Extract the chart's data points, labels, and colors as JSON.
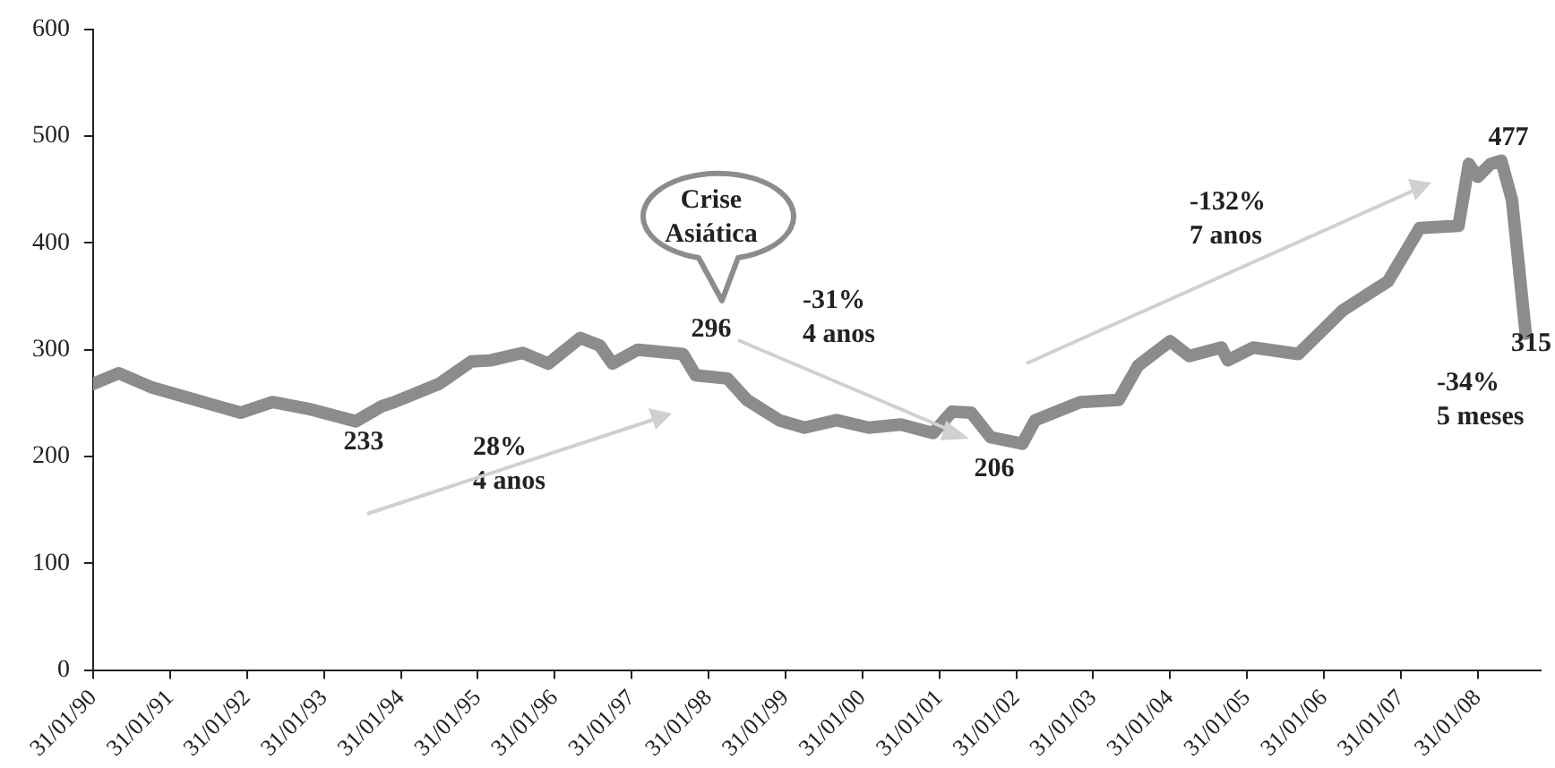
{
  "chart_data": {
    "type": "line",
    "x": [
      "1990-01-31",
      "1990-06",
      "1990-11",
      "1992-01",
      "1992-06",
      "1992-12",
      "1993-07",
      "1993-11",
      "1994-01",
      "1994-08",
      "1995-01",
      "1995-04",
      "1995-09",
      "1996-01",
      "1996-06",
      "1996-09",
      "1996-11",
      "1997-03",
      "1997-10",
      "1997-12",
      "1998-05",
      "1998-08",
      "1999-01",
      "1999-05",
      "1999-10",
      "2000-03",
      "2000-08",
      "2001-01",
      "2001-04",
      "2001-07",
      "2001-10",
      "2002-03",
      "2002-05",
      "2002-12",
      "2003-06",
      "2003-09",
      "2004-02",
      "2004-05",
      "2004-10",
      "2004-11",
      "2005-03",
      "2005-10",
      "2006-05",
      "2006-12",
      "2007-05",
      "2007-11",
      "2007-12-20",
      "2008-01-31",
      "2008-04-01",
      "2008-05-22",
      "2008-07-12",
      "2008-09-15"
    ],
    "series": [
      {
        "color": "#8c8c8c",
        "values": [
          268,
          278,
          265,
          241,
          251,
          244,
          233,
          247,
          251,
          268,
          289,
          290,
          297,
          287,
          311,
          304,
          287,
          300,
          296,
          276,
          273,
          253,
          234,
          227,
          234,
          227,
          230,
          222,
          242,
          241,
          218,
          212,
          234,
          251,
          253,
          285,
          308,
          294,
          302,
          290,
          302,
          296,
          337,
          364,
          414,
          416,
          474,
          462,
          474,
          477,
          440,
          315
        ]
      }
    ],
    "xlim": [
      "1990-01-31",
      "2008-11-25"
    ],
    "xticks": [
      {
        "value": "1990-01-31",
        "label": "31/01/90"
      },
      {
        "value": "1991-01-31",
        "label": "31/01/91"
      },
      {
        "value": "1992-01-31",
        "label": "31/01/92"
      },
      {
        "value": "1993-01-31",
        "label": "31/01/93"
      },
      {
        "value": "1994-01-31",
        "label": "31/01/94"
      },
      {
        "value": "1995-01-31",
        "label": "31/01/95"
      },
      {
        "value": "1996-01-31",
        "label": "31/01/96"
      },
      {
        "value": "1997-01-31",
        "label": "31/01/97"
      },
      {
        "value": "1998-01-31",
        "label": "31/01/98"
      },
      {
        "value": "1999-01-31",
        "label": "31/01/99"
      },
      {
        "value": "2000-01-31",
        "label": "31/01/00"
      },
      {
        "value": "2001-01-31",
        "label": "31/01/01"
      },
      {
        "value": "2002-01-31",
        "label": "31/01/02"
      },
      {
        "value": "2003-01-31",
        "label": "31/01/03"
      },
      {
        "value": "2004-01-31",
        "label": "31/01/04"
      },
      {
        "value": "2005-01-31",
        "label": "31/01/05"
      },
      {
        "value": "2006-01-31",
        "label": "31/01/06"
      },
      {
        "value": "2007-01-31",
        "label": "31/01/07"
      },
      {
        "value": "2008-01-31",
        "label": "31/01/08"
      }
    ],
    "ylim": [
      0,
      600
    ],
    "yticks": [
      0,
      100,
      200,
      300,
      400,
      500,
      600
    ],
    "marker": "none",
    "legend": false,
    "annotations": [
      "233",
      "28%\n4 anos",
      "Crise\nAsiática",
      "296",
      "-31%\n4 anos",
      "206",
      "-132%\n7 anos",
      "477",
      "315",
      "-34%\n5 meses"
    ]
  }
}
